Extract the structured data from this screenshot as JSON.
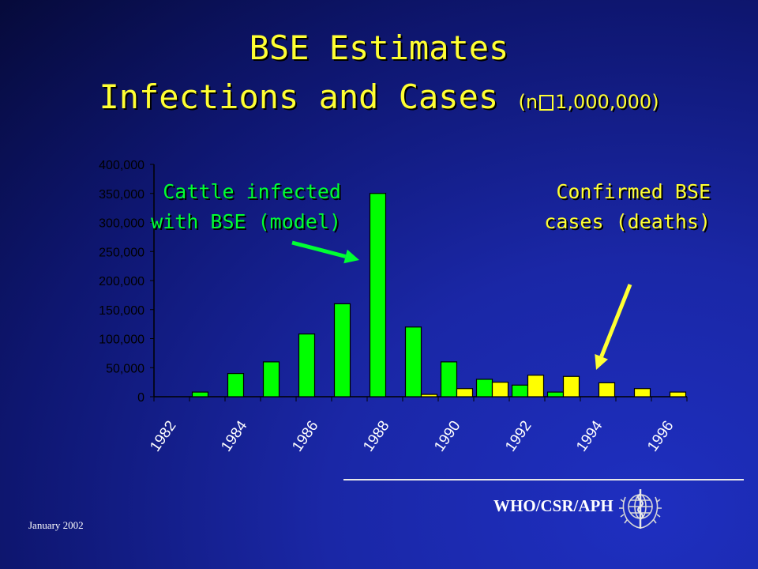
{
  "title": {
    "line1": "BSE Estimates",
    "line2": "Infections and Cases",
    "note_prefix": "(n",
    "note_suffix": "1,000,000)"
  },
  "annotations": {
    "infected_line1": "Cattle infected",
    "infected_line2": "with BSE (model)",
    "cases_line1": "Confirmed BSE",
    "cases_line2": "cases (deaths)"
  },
  "footer": {
    "date": "January 2002",
    "org": "WHO/CSR/APH"
  },
  "colors": {
    "infected": "#00ff00",
    "cases": "#ffff00",
    "title": "#ffff33",
    "arrow_green": "#00ff33",
    "arrow_yellow": "#ffff33"
  },
  "icons": {
    "logo": "who-emblem-icon"
  },
  "chart_data": {
    "type": "bar",
    "categories": [
      "1982",
      "1983",
      "1984",
      "1985",
      "1986",
      "1987",
      "1988",
      "1989",
      "1990",
      "1991",
      "1992",
      "1993",
      "1994",
      "1995",
      "1996"
    ],
    "x_tick_labels": [
      "1982",
      "1984",
      "1986",
      "1988",
      "1990",
      "1992",
      "1994",
      "1996"
    ],
    "ylim": [
      0,
      400000
    ],
    "y_ticks": [
      0,
      50000,
      100000,
      150000,
      200000,
      250000,
      300000,
      350000,
      400000
    ],
    "y_tick_labels": [
      "0",
      "50,000",
      "100,000",
      "150,000",
      "200,000",
      "250,000",
      "300,000",
      "350,000",
      "400,000"
    ],
    "grid": false,
    "series": [
      {
        "name": "Cattle infected with BSE (model)",
        "values": [
          0,
          8000,
          40000,
          60000,
          108000,
          160000,
          350000,
          120000,
          60000,
          30000,
          20000,
          8000,
          0,
          0,
          0
        ]
      },
      {
        "name": "Confirmed BSE cases (deaths)",
        "values": [
          0,
          0,
          0,
          0,
          0,
          0,
          0,
          4000,
          14000,
          25000,
          37000,
          35000,
          24000,
          14000,
          8000
        ]
      }
    ]
  }
}
